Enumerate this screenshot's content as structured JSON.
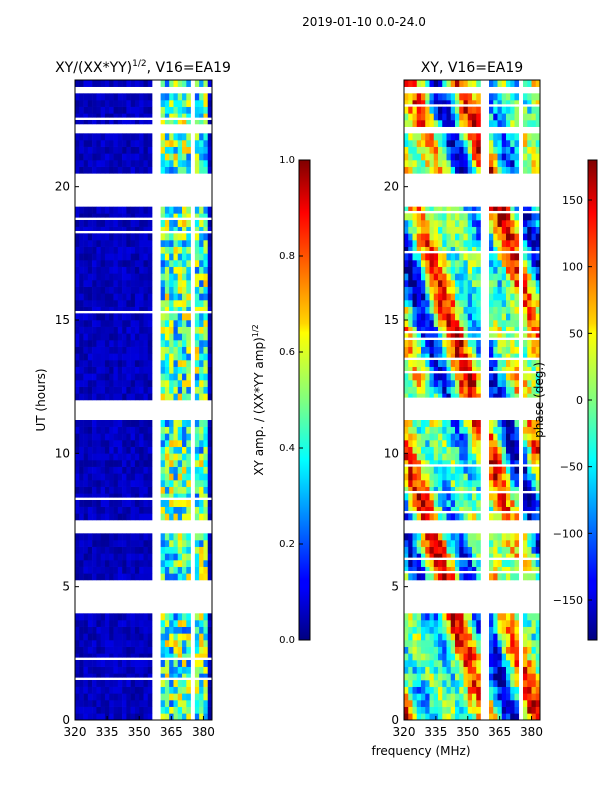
{
  "suptitle": "2019-01-10 0.0-24.0",
  "chart_data": [
    {
      "type": "heatmap",
      "title": "XY/(XX*YY)^{1/2}, V16=EA19",
      "title_main": "XY/(XX*YY)",
      "title_sup": "1/2",
      "title_tail": ", V16=EA19",
      "xlabel": "",
      "ylabel": "UT (hours)",
      "xlim": [
        320,
        384
      ],
      "ylim": [
        0,
        24
      ],
      "x_ticks": [
        320,
        335,
        350,
        365,
        380
      ],
      "y_ticks": [
        0,
        5,
        10,
        15,
        20
      ],
      "colorscale": "jet",
      "cbar": {
        "label_main": "XY amp. / (XX*YY amp)",
        "label_sup": "1/2",
        "range": [
          0.0,
          1.0
        ],
        "ticks": [
          "0.0",
          "0.2",
          "0.4",
          "0.6",
          "0.8",
          "1.0"
        ]
      },
      "flagged_ut_ranges": [
        [
          4.1,
          5.3
        ],
        [
          7.1,
          7.4
        ],
        [
          11.2,
          12.0
        ],
        [
          19.3,
          20.5
        ],
        [
          22.1,
          22.2
        ],
        [
          23.6,
          23.8
        ]
      ],
      "flagged_freq_ranges": [
        [
          356,
          359
        ],
        [
          375,
          376
        ]
      ],
      "band_active_freq": [
        360,
        382
      ],
      "band_value_typical": 0.45,
      "background_value_typical": 0.05
    },
    {
      "type": "heatmap",
      "title": "XY, V16=EA19",
      "xlabel": "frequency (MHz)",
      "ylabel": "",
      "xlim": [
        320,
        384
      ],
      "ylim": [
        0,
        24
      ],
      "x_ticks": [
        320,
        335,
        350,
        365,
        380
      ],
      "y_ticks": [
        0,
        5,
        10,
        15,
        20
      ],
      "colorscale": "jet",
      "cbar": {
        "label_main": "phase (deg.)",
        "range": [
          -180,
          180
        ],
        "ticks": [
          "−150",
          "−100",
          "−50",
          "0",
          "50",
          "100",
          "150"
        ],
        "tick_values": [
          -150,
          -100,
          -50,
          0,
          50,
          100,
          150
        ]
      },
      "flagged_ut_ranges": [
        [
          4.1,
          5.3
        ],
        [
          7.1,
          7.4
        ],
        [
          11.2,
          12.0
        ],
        [
          19.3,
          20.5
        ],
        [
          22.1,
          22.2
        ],
        [
          23.6,
          23.8
        ]
      ],
      "flagged_freq_ranges": [
        [
          356,
          359
        ],
        [
          375,
          376
        ]
      ]
    }
  ]
}
